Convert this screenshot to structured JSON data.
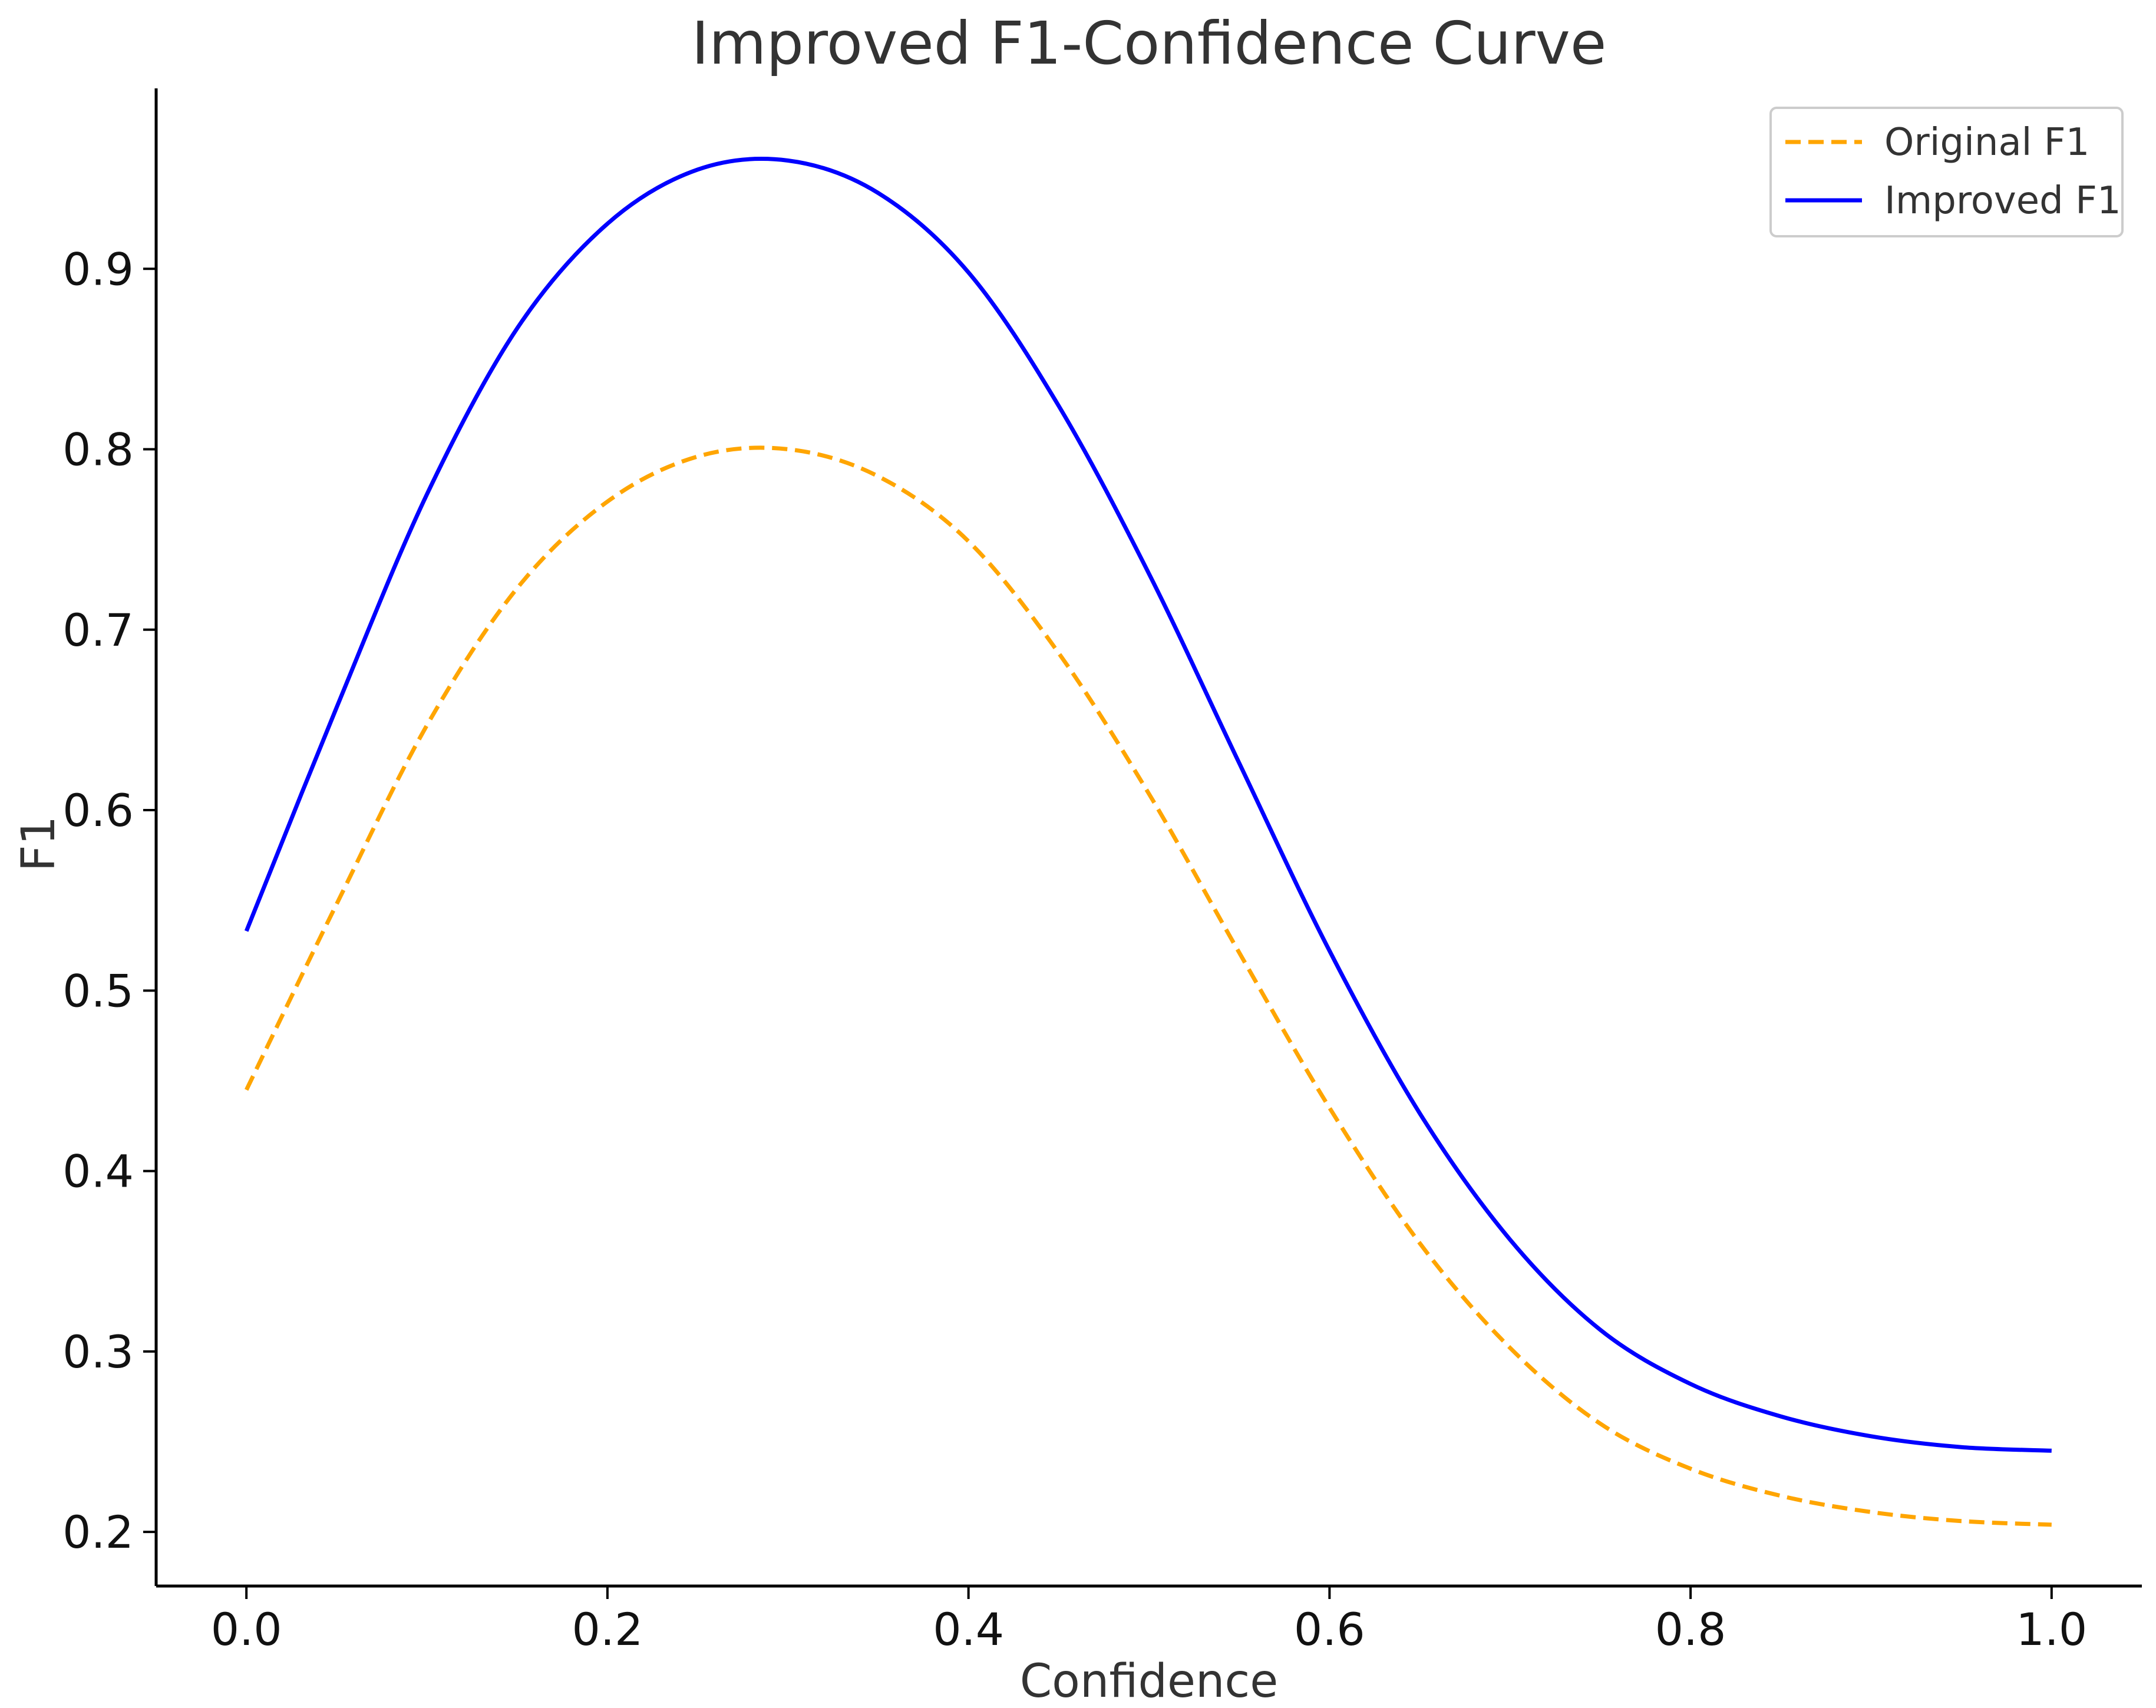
{
  "chart_data": {
    "type": "line",
    "title": "Improved F1-Confidence Curve",
    "xlabel": "Confidence",
    "ylabel": "F1",
    "xlim": [
      -0.05,
      1.05
    ],
    "ylim": [
      0.17,
      1.0
    ],
    "x_ticks": [
      0.0,
      0.2,
      0.4,
      0.6,
      0.8,
      1.0
    ],
    "x_tick_labels": [
      "0.0",
      "0.2",
      "0.4",
      "0.6",
      "0.8",
      "1.0"
    ],
    "y_ticks": [
      0.2,
      0.3,
      0.4,
      0.5,
      0.6,
      0.7,
      0.8,
      0.9
    ],
    "y_tick_labels": [
      "0.2",
      "0.3",
      "0.4",
      "0.5",
      "0.6",
      "0.7",
      "0.8",
      "0.9"
    ],
    "grid": false,
    "legend_position": "top-right",
    "x": [
      0.0,
      0.05,
      0.1,
      0.15,
      0.2,
      0.25,
      0.3,
      0.35,
      0.4,
      0.45,
      0.5,
      0.55,
      0.6,
      0.65,
      0.7,
      0.75,
      0.8,
      0.85,
      0.9,
      0.95,
      1.0
    ],
    "series": [
      {
        "name": "Original F1",
        "color": "#FFA500",
        "style": "dashed",
        "values": [
          0.445,
          0.548,
          0.647,
          0.723,
          0.771,
          0.796,
          0.8,
          0.785,
          0.749,
          0.687,
          0.609,
          0.521,
          0.435,
          0.36,
          0.302,
          0.26,
          0.235,
          0.22,
          0.211,
          0.206,
          0.204
        ]
      },
      {
        "name": "Improved F1",
        "color": "#0000FF",
        "style": "solid",
        "values": [
          0.533,
          0.657,
          0.775,
          0.867,
          0.925,
          0.955,
          0.96,
          0.942,
          0.898,
          0.824,
          0.731,
          0.626,
          0.522,
          0.432,
          0.362,
          0.312,
          0.282,
          0.264,
          0.253,
          0.247,
          0.245
        ]
      }
    ]
  }
}
